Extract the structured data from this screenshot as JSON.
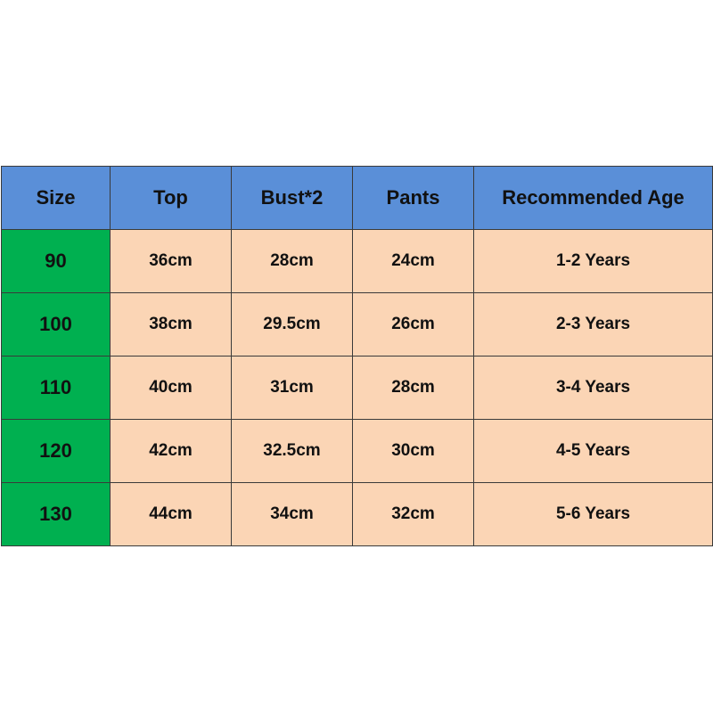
{
  "table": {
    "header": [
      "Size",
      "Top",
      "Bust*2",
      "Pants",
      "Recommended Age"
    ],
    "rows": [
      [
        "90",
        "36cm",
        "28cm",
        "24cm",
        "1-2 Years"
      ],
      [
        "100",
        "38cm",
        "29.5cm",
        "26cm",
        "2-3 Years"
      ],
      [
        "110",
        "40cm",
        "31cm",
        "28cm",
        "3-4 Years"
      ],
      [
        "120",
        "42cm",
        "32.5cm",
        "30cm",
        "4-5 Years"
      ],
      [
        "130",
        "44cm",
        "34cm",
        "32cm",
        "5-6 Years"
      ]
    ]
  }
}
